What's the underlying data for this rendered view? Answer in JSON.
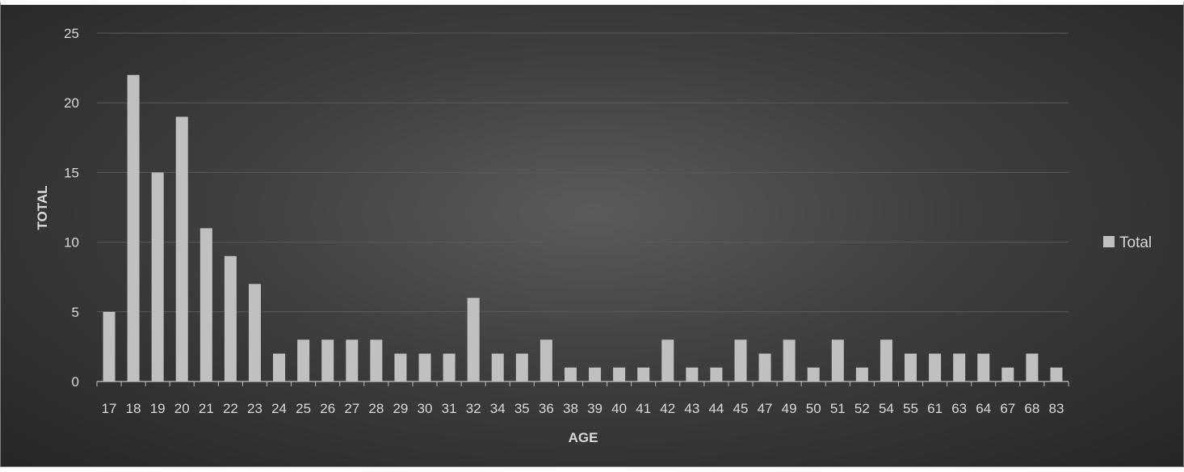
{
  "chart_data": {
    "type": "bar",
    "title": "",
    "xlabel": "AGE",
    "ylabel": "TOTAL",
    "ylim": [
      0,
      25
    ],
    "yticks": [
      "0",
      "5",
      "10",
      "15",
      "20",
      "25"
    ],
    "grid": true,
    "legend_position": "right",
    "categories": [
      "17",
      "18",
      "19",
      "20",
      "21",
      "22",
      "23",
      "24",
      "25",
      "26",
      "27",
      "28",
      "29",
      "30",
      "31",
      "32",
      "34",
      "35",
      "36",
      "38",
      "39",
      "40",
      "41",
      "42",
      "43",
      "44",
      "45",
      "47",
      "49",
      "50",
      "51",
      "52",
      "54",
      "55",
      "61",
      "63",
      "64",
      "67",
      "68",
      "83"
    ],
    "series": [
      {
        "name": "Total",
        "color": "#c0c0c0",
        "values": [
          5,
          22,
          15,
          19,
          11,
          9,
          7,
          2,
          3,
          3,
          3,
          3,
          2,
          2,
          2,
          6,
          2,
          2,
          3,
          1,
          1,
          1,
          1,
          3,
          1,
          1,
          3,
          2,
          3,
          1,
          3,
          1,
          3,
          2,
          2,
          2,
          2,
          1,
          2,
          1
        ]
      }
    ]
  }
}
